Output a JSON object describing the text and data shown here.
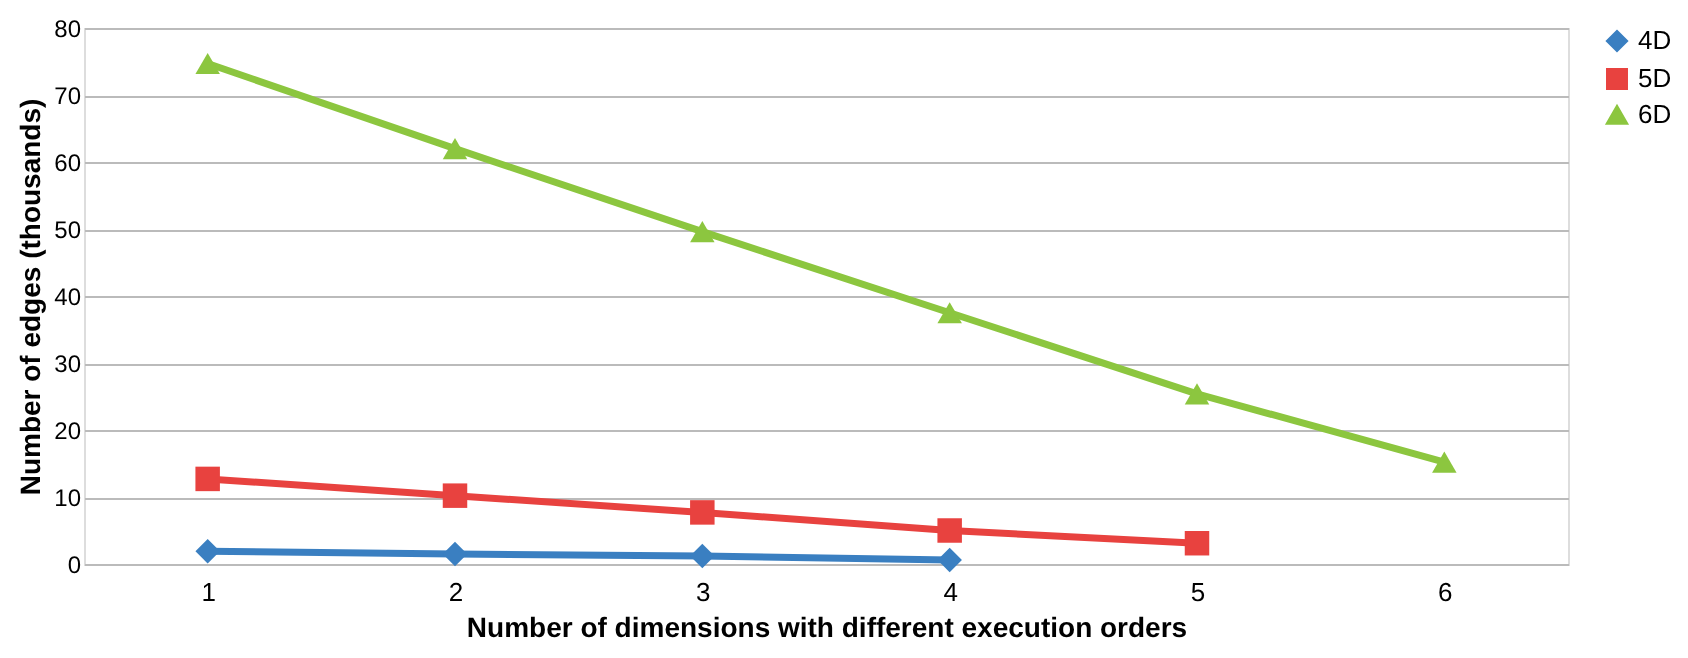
{
  "chart_data": {
    "type": "line",
    "xlabel": "Number of dimensions with different execution orders",
    "ylabel": "Number of edges (thousands)",
    "categories": [
      "1",
      "2",
      "3",
      "4",
      "5",
      "6"
    ],
    "ylim": [
      0,
      80
    ],
    "yticks": [
      0,
      10,
      20,
      30,
      40,
      50,
      60,
      70,
      80
    ],
    "grid": "y",
    "legend": "right",
    "series": [
      {
        "name": "4D",
        "color": "#3a7fc1",
        "marker": "diamond",
        "values": [
          1.9,
          1.5,
          1.2,
          0.6,
          null,
          null
        ]
      },
      {
        "name": "5D",
        "color": "#e8423f",
        "marker": "square",
        "values": [
          12.7,
          10.2,
          7.7,
          5,
          3.1,
          null
        ]
      },
      {
        "name": "6D",
        "color": "#8cc63f",
        "marker": "triangle",
        "values": [
          74.7,
          62,
          49.6,
          37.5,
          25.4,
          15.2
        ]
      }
    ]
  }
}
